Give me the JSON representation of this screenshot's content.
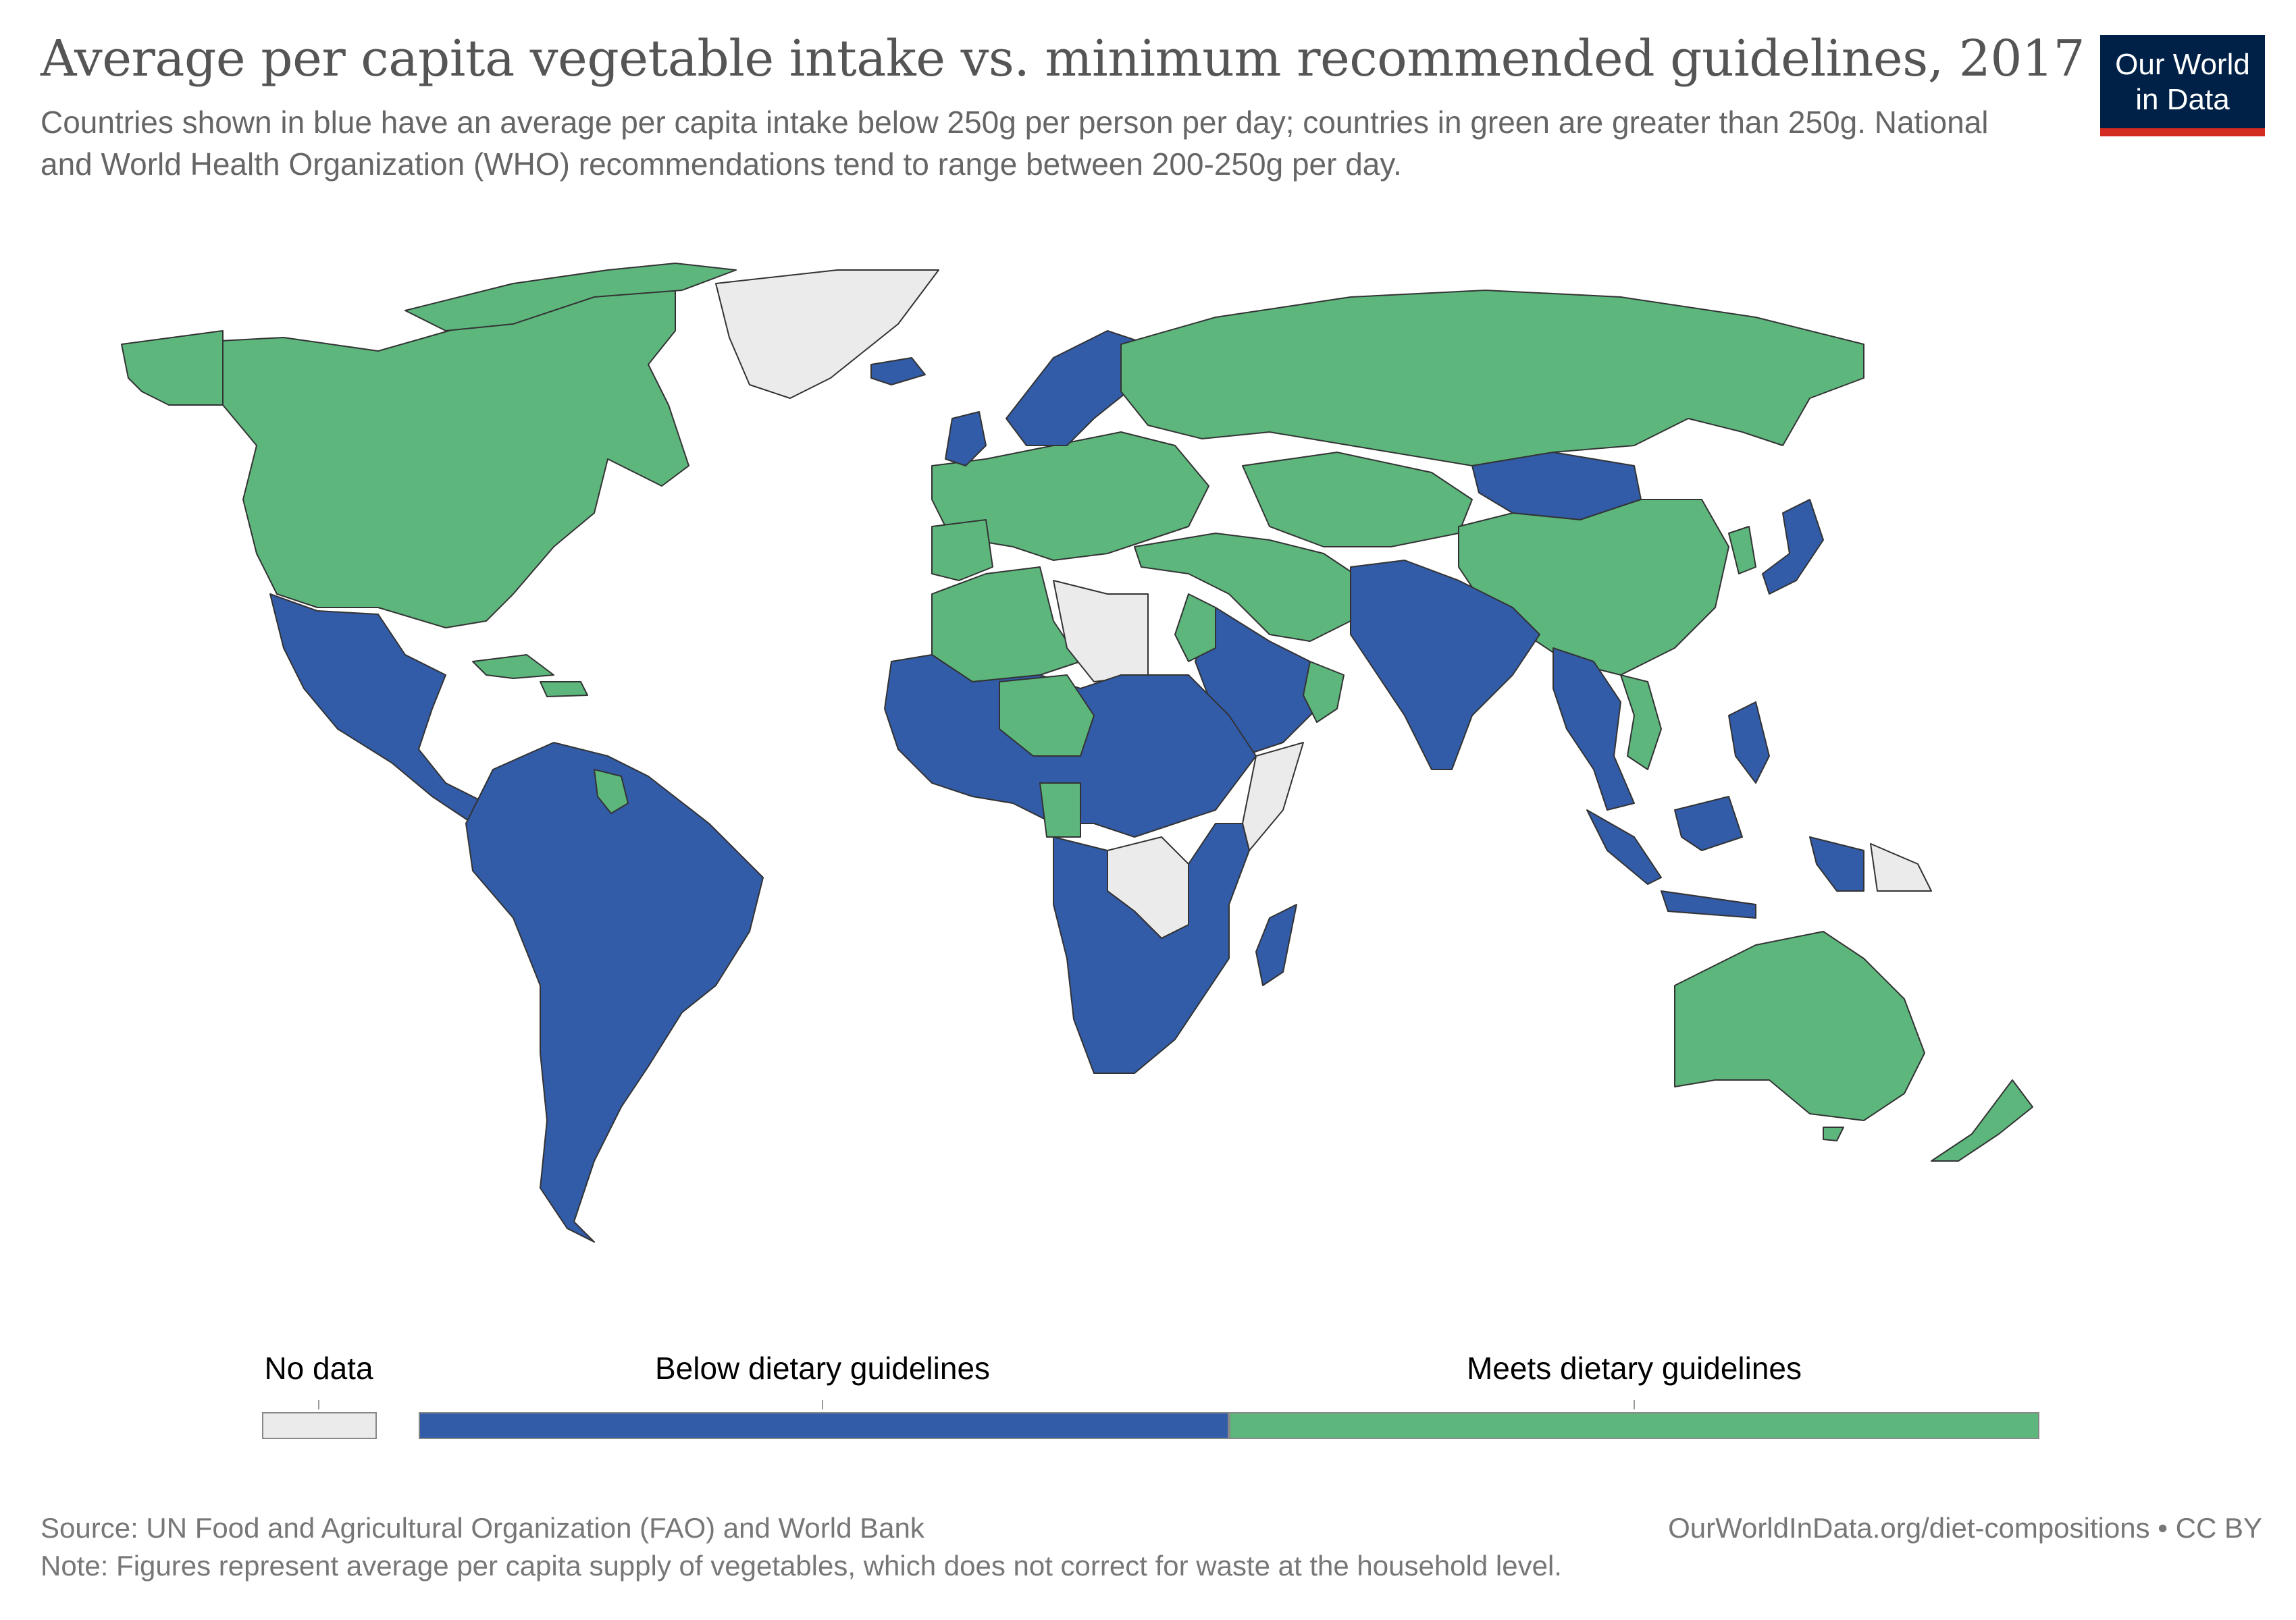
{
  "header": {
    "title": "Average per capita vegetable intake vs. minimum recommended guidelines, 2017",
    "subtitle": "Countries shown in blue have an average per capita intake below 250g per person per day; countries in green are greater than 250g. National and World Health Organization (WHO) recommendations tend to range between 200-250g per day."
  },
  "logo": {
    "line1": "Our World",
    "line2": "in Data",
    "bar_color": "#d42b21"
  },
  "colors": {
    "below": "#325ba8",
    "meets": "#5db77d",
    "no_data": "#ebebeb",
    "border": "#333333"
  },
  "legend": {
    "no_data_label": "No data",
    "below_label": "Below dietary guidelines",
    "meets_label": "Meets dietary guidelines"
  },
  "map_regions": [
    {
      "region": "North America",
      "category": "meets"
    },
    {
      "region": "Alaska",
      "category": "meets"
    },
    {
      "region": "Greenland",
      "category": "no_data"
    },
    {
      "region": "Mexico & Central America",
      "category": "below"
    },
    {
      "region": "Cuba & Caribbean",
      "category": "meets"
    },
    {
      "region": "South America",
      "category": "below"
    },
    {
      "region": "Guyana",
      "category": "meets"
    },
    {
      "region": "Europe",
      "category": "meets"
    },
    {
      "region": "Scandinavia",
      "category": "below"
    },
    {
      "region": "Iceland",
      "category": "below"
    },
    {
      "region": "United Kingdom",
      "category": "below"
    },
    {
      "region": "Russia",
      "category": "meets"
    },
    {
      "region": "Kazakhstan & Central Asia",
      "category": "meets"
    },
    {
      "region": "Mongolia",
      "category": "below"
    },
    {
      "region": "China",
      "category": "meets"
    },
    {
      "region": "Japan",
      "category": "below"
    },
    {
      "region": "Korea",
      "category": "meets"
    },
    {
      "region": "Turkey & Iran",
      "category": "meets"
    },
    {
      "region": "Arabian Peninsula",
      "category": "below"
    },
    {
      "region": "Oman",
      "category": "meets"
    },
    {
      "region": "Pakistan, Afghanistan & India",
      "category": "below"
    },
    {
      "region": "Southeast Asia",
      "category": "below"
    },
    {
      "region": "Vietnam & Cambodia",
      "category": "meets"
    },
    {
      "region": "Indonesia & Philippines",
      "category": "below"
    },
    {
      "region": "North Africa",
      "category": "meets"
    },
    {
      "region": "Libya",
      "category": "no_data"
    },
    {
      "region": "West & Central Africa",
      "category": "below"
    },
    {
      "region": "Niger & Chad",
      "category": "meets"
    },
    {
      "region": "DR Congo",
      "category": "no_data"
    },
    {
      "region": "Somalia",
      "category": "no_data"
    },
    {
      "region": "Southern & East Africa",
      "category": "below"
    },
    {
      "region": "Madagascar",
      "category": "below"
    },
    {
      "region": "Australia",
      "category": "meets"
    },
    {
      "region": "New Zealand",
      "category": "meets"
    },
    {
      "region": "Papua New Guinea",
      "category": "no_data"
    }
  ],
  "footer": {
    "source": "Source: UN Food and Agricultural Organization (FAO) and World Bank",
    "note": "Note: Figures represent average per capita supply of vegetables, which does not correct for waste at the household level.",
    "url": "OurWorldInData.org/diet-compositions • CC BY"
  }
}
